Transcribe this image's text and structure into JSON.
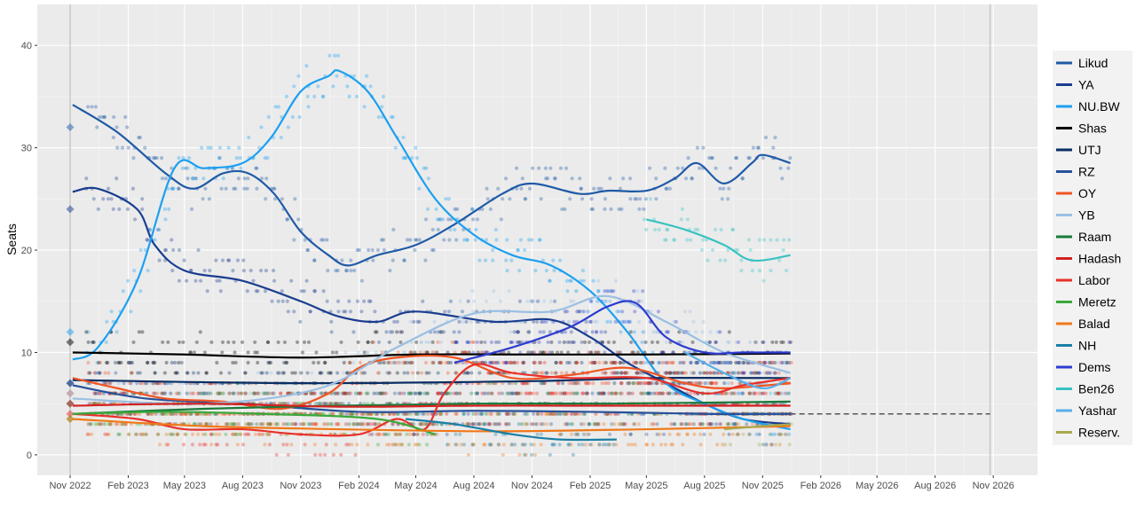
{
  "chart_data": {
    "type": "line",
    "ylabel": "Seats",
    "xlabel": "",
    "ylim": [
      -2,
      44
    ],
    "y_ticks": [
      0,
      10,
      20,
      30,
      40
    ],
    "x_axis": "date",
    "xlim": [
      "2022-09-10",
      "2027-01-10"
    ],
    "x_ticks": [
      {
        "date": "2022-11-01",
        "label": "Nov 2022"
      },
      {
        "date": "2023-02-01",
        "label": "Feb 2023"
      },
      {
        "date": "2023-05-01",
        "label": "May 2023"
      },
      {
        "date": "2023-08-01",
        "label": "Aug 2023"
      },
      {
        "date": "2023-11-01",
        "label": "Nov 2023"
      },
      {
        "date": "2024-02-01",
        "label": "Feb 2024"
      },
      {
        "date": "2024-05-01",
        "label": "May 2024"
      },
      {
        "date": "2024-08-01",
        "label": "Aug 2024"
      },
      {
        "date": "2024-11-01",
        "label": "Nov 2024"
      },
      {
        "date": "2025-02-01",
        "label": "Feb 2025"
      },
      {
        "date": "2025-05-01",
        "label": "May 2025"
      },
      {
        "date": "2025-08-01",
        "label": "Aug 2025"
      },
      {
        "date": "2025-11-01",
        "label": "Nov 2025"
      },
      {
        "date": "2026-02-01",
        "label": "Feb 2026"
      },
      {
        "date": "2026-05-01",
        "label": "May 2026"
      },
      {
        "date": "2026-08-01",
        "label": "Aug 2026"
      },
      {
        "date": "2026-11-01",
        "label": "Nov 2026"
      }
    ],
    "vertical_lines": [
      "2022-11-01",
      "2026-10-27"
    ],
    "threshold": {
      "value": 4,
      "from": "2025-12-15",
      "to": "2026-10-27",
      "style": "dashed"
    },
    "grid": true,
    "legend_position": "right",
    "series": [
      {
        "name": "Likud",
        "color": "#1f5aa6",
        "election": 32,
        "points": [
          [
            "2022-11-05",
            34.2
          ],
          [
            "2023-01-15",
            31.5
          ],
          [
            "2023-04-01",
            27.5
          ],
          [
            "2023-05-15",
            26.0
          ],
          [
            "2023-07-01",
            27.5
          ],
          [
            "2023-08-10",
            27.5
          ],
          [
            "2023-09-20",
            25.5
          ],
          [
            "2023-11-01",
            21.8
          ],
          [
            "2023-12-15",
            19.5
          ],
          [
            "2024-01-15",
            18.5
          ],
          [
            "2024-03-01",
            19.5
          ],
          [
            "2024-05-01",
            20.5
          ],
          [
            "2024-07-01",
            22.5
          ],
          [
            "2024-09-15",
            25.5
          ],
          [
            "2024-11-01",
            26.5
          ],
          [
            "2025-01-15",
            25.5
          ],
          [
            "2025-03-01",
            25.8
          ],
          [
            "2025-05-01",
            25.8
          ],
          [
            "2025-06-15",
            27.0
          ],
          [
            "2025-07-20",
            28.5
          ],
          [
            "2025-09-01",
            26.5
          ],
          [
            "2025-10-15",
            28.5
          ],
          [
            "2025-11-01",
            29.3
          ],
          [
            "2025-12-15",
            28.5
          ]
        ]
      },
      {
        "name": "YA",
        "color": "#1a3d8f",
        "election": 24,
        "points": [
          [
            "2022-11-05",
            25.7
          ],
          [
            "2022-12-15",
            26.0
          ],
          [
            "2023-02-15",
            24.0
          ],
          [
            "2023-03-15",
            20.5
          ],
          [
            "2023-05-01",
            18.0
          ],
          [
            "2023-08-01",
            17.0
          ],
          [
            "2023-11-01",
            15.0
          ],
          [
            "2024-01-01",
            13.5
          ],
          [
            "2024-03-01",
            13.0
          ],
          [
            "2024-05-01",
            14.0
          ],
          [
            "2024-09-01",
            13.0
          ],
          [
            "2024-12-01",
            13.2
          ],
          [
            "2025-02-01",
            11.5
          ],
          [
            "2025-04-01",
            9.0
          ],
          [
            "2025-06-01",
            7.0
          ],
          [
            "2025-08-01",
            5.0
          ],
          [
            "2025-10-01",
            3.5
          ],
          [
            "2025-12-15",
            3.0
          ]
        ]
      },
      {
        "name": "NU.BW",
        "color": "#1ca0f0",
        "election": 12,
        "points": [
          [
            "2022-11-05",
            9.3
          ],
          [
            "2022-12-15",
            10.5
          ],
          [
            "2023-02-15",
            17.0
          ],
          [
            "2023-04-15",
            28.0
          ],
          [
            "2023-06-01",
            28.0
          ],
          [
            "2023-08-01",
            28.5
          ],
          [
            "2023-09-15",
            31.0
          ],
          [
            "2023-11-01",
            35.5
          ],
          [
            "2023-12-15",
            37.0
          ],
          [
            "2024-01-01",
            37.5
          ],
          [
            "2024-02-15",
            35.5
          ],
          [
            "2024-04-01",
            31.0
          ],
          [
            "2024-06-01",
            25.0
          ],
          [
            "2024-08-01",
            21.5
          ],
          [
            "2024-10-01",
            19.5
          ],
          [
            "2024-12-01",
            18.5
          ],
          [
            "2025-02-01",
            16.0
          ],
          [
            "2025-04-01",
            12.0
          ],
          [
            "2025-06-01",
            7.0
          ],
          [
            "2025-08-01",
            5.0
          ],
          [
            "2025-10-01",
            3.5
          ],
          [
            "2025-12-15",
            2.5
          ]
        ]
      },
      {
        "name": "Shas",
        "color": "#000000",
        "election": 11,
        "points": [
          [
            "2022-11-05",
            10.0
          ],
          [
            "2023-05-01",
            9.8
          ],
          [
            "2023-11-01",
            9.5
          ],
          [
            "2024-05-01",
            9.8
          ],
          [
            "2024-11-01",
            9.8
          ],
          [
            "2025-05-01",
            9.8
          ],
          [
            "2025-12-15",
            9.9
          ]
        ]
      },
      {
        "name": "UTJ",
        "color": "#0a2e63",
        "election": 7,
        "points": [
          [
            "2022-11-05",
            7.3
          ],
          [
            "2023-11-01",
            7.0
          ],
          [
            "2024-11-01",
            7.2
          ],
          [
            "2025-05-01",
            7.5
          ],
          [
            "2025-12-15",
            7.5
          ]
        ]
      },
      {
        "name": "RZ",
        "color": "#27509b",
        "election": 7,
        "points": [
          [
            "2022-11-05",
            6.8
          ],
          [
            "2023-03-01",
            5.5
          ],
          [
            "2023-08-01",
            5.0
          ],
          [
            "2024-02-01",
            4.2
          ],
          [
            "2024-08-01",
            4.3
          ],
          [
            "2025-02-01",
            4.2
          ],
          [
            "2025-08-01",
            4.0
          ],
          [
            "2025-12-15",
            4.0
          ]
        ]
      },
      {
        "name": "OY",
        "color": "#f05522",
        "election": 6,
        "points": [
          [
            "2022-11-05",
            7.5
          ],
          [
            "2023-01-15",
            6.5
          ],
          [
            "2023-04-01",
            5.5
          ],
          [
            "2023-07-01",
            5.2
          ],
          [
            "2023-10-01",
            4.5
          ],
          [
            "2023-12-15",
            6.0
          ],
          [
            "2024-02-01",
            8.5
          ],
          [
            "2024-04-01",
            9.5
          ],
          [
            "2024-07-01",
            9.5
          ],
          [
            "2024-10-01",
            7.5
          ],
          [
            "2025-01-01",
            7.8
          ],
          [
            "2025-04-01",
            8.5
          ],
          [
            "2025-07-01",
            7.0
          ],
          [
            "2025-09-01",
            6.5
          ],
          [
            "2025-12-15",
            7.0
          ]
        ]
      },
      {
        "name": "YB",
        "color": "#9bbfe3",
        "election": 6,
        "points": [
          [
            "2022-11-05",
            5.5
          ],
          [
            "2023-06-01",
            5.0
          ],
          [
            "2023-12-01",
            6.5
          ],
          [
            "2024-04-01",
            10.5
          ],
          [
            "2024-08-01",
            13.8
          ],
          [
            "2024-12-01",
            14.0
          ],
          [
            "2025-03-01",
            15.5
          ],
          [
            "2025-06-01",
            13.0
          ],
          [
            "2025-09-01",
            10.0
          ],
          [
            "2025-12-15",
            8.0
          ]
        ]
      },
      {
        "name": "Raam",
        "color": "#1a7a3a",
        "election": 5,
        "points": [
          [
            "2022-11-05",
            4.0
          ],
          [
            "2023-06-01",
            4.5
          ],
          [
            "2024-01-01",
            4.8
          ],
          [
            "2024-08-01",
            5.0
          ],
          [
            "2025-03-01",
            5.0
          ],
          [
            "2025-12-15",
            5.2
          ]
        ]
      },
      {
        "name": "Hadash",
        "color": "#d42020",
        "election": 5,
        "points": [
          [
            "2022-11-05",
            4.8
          ],
          [
            "2023-06-01",
            5.0
          ],
          [
            "2024-01-01",
            4.7
          ],
          [
            "2024-08-01",
            4.8
          ],
          [
            "2025-03-01",
            4.8
          ],
          [
            "2025-12-15",
            4.8
          ]
        ]
      },
      {
        "name": "Labor",
        "color": "#e8302a",
        "election": 4,
        "points": [
          [
            "2022-11-05",
            4.0
          ],
          [
            "2023-02-15",
            3.5
          ],
          [
            "2023-05-01",
            2.5
          ],
          [
            "2023-08-01",
            2.5
          ],
          [
            "2023-11-01",
            2.0
          ],
          [
            "2024-02-01",
            2.0
          ],
          [
            "2024-04-01",
            3.5
          ],
          [
            "2024-05-15",
            2.5
          ],
          [
            "2024-06-15",
            6.0
          ],
          [
            "2024-08-01",
            8.8
          ],
          [
            "2024-10-01",
            8.0
          ],
          [
            "2025-01-01",
            7.5
          ],
          [
            "2025-05-01",
            7.5
          ],
          [
            "2025-08-01",
            6.0
          ],
          [
            "2025-10-01",
            6.8
          ],
          [
            "2025-12-15",
            7.5
          ]
        ]
      },
      {
        "name": "Meretz",
        "color": "#3aa83a",
        "election": 3.5,
        "points": [
          [
            "2022-11-05",
            4.0
          ],
          [
            "2023-04-01",
            4.2
          ],
          [
            "2023-09-01",
            4.0
          ],
          [
            "2024-03-01",
            3.5
          ],
          [
            "2024-06-01",
            2.0
          ]
        ]
      },
      {
        "name": "Balad",
        "color": "#f07818",
        "election": 3.5,
        "points": [
          [
            "2022-11-05",
            3.5
          ],
          [
            "2023-06-01",
            2.8
          ],
          [
            "2024-01-01",
            2.5
          ],
          [
            "2024-09-01",
            2.3
          ],
          [
            "2025-05-01",
            2.5
          ],
          [
            "2025-12-15",
            2.8
          ]
        ]
      },
      {
        "name": "NH",
        "color": "#1a7ea6",
        "election": null,
        "points": [
          [
            "2024-04-15",
            3.5
          ],
          [
            "2024-07-01",
            3.0
          ],
          [
            "2024-10-01",
            2.0
          ],
          [
            "2024-12-15",
            1.5
          ],
          [
            "2025-03-15",
            1.5
          ]
        ]
      },
      {
        "name": "Dems",
        "color": "#2e3ccf",
        "election": null,
        "points": [
          [
            "2024-07-01",
            9.0
          ],
          [
            "2024-10-01",
            10.5
          ],
          [
            "2025-01-01",
            12.5
          ],
          [
            "2025-03-01",
            14.5
          ],
          [
            "2025-04-15",
            14.8
          ],
          [
            "2025-06-01",
            11.5
          ],
          [
            "2025-08-01",
            10.0
          ],
          [
            "2025-10-01",
            10.0
          ],
          [
            "2025-12-15",
            10.0
          ]
        ]
      },
      {
        "name": "Ben26",
        "color": "#38c2c2",
        "election": null,
        "points": [
          [
            "2025-05-01",
            23.0
          ],
          [
            "2025-07-01",
            22.0
          ],
          [
            "2025-09-01",
            20.5
          ],
          [
            "2025-10-15",
            19.0
          ],
          [
            "2025-12-15",
            19.5
          ]
        ]
      },
      {
        "name": "Yashar",
        "color": "#55aeea",
        "election": null,
        "points": [
          [
            "2025-07-01",
            10.0
          ],
          [
            "2025-09-01",
            8.0
          ],
          [
            "2025-11-01",
            6.5
          ],
          [
            "2025-12-15",
            7.5
          ]
        ]
      },
      {
        "name": "Reserv.",
        "color": "#a8a850",
        "election": null,
        "points": [
          [
            "2025-09-01",
            2.5
          ],
          [
            "2025-11-01",
            2.8
          ],
          [
            "2025-12-15",
            3.0
          ]
        ]
      }
    ]
  }
}
